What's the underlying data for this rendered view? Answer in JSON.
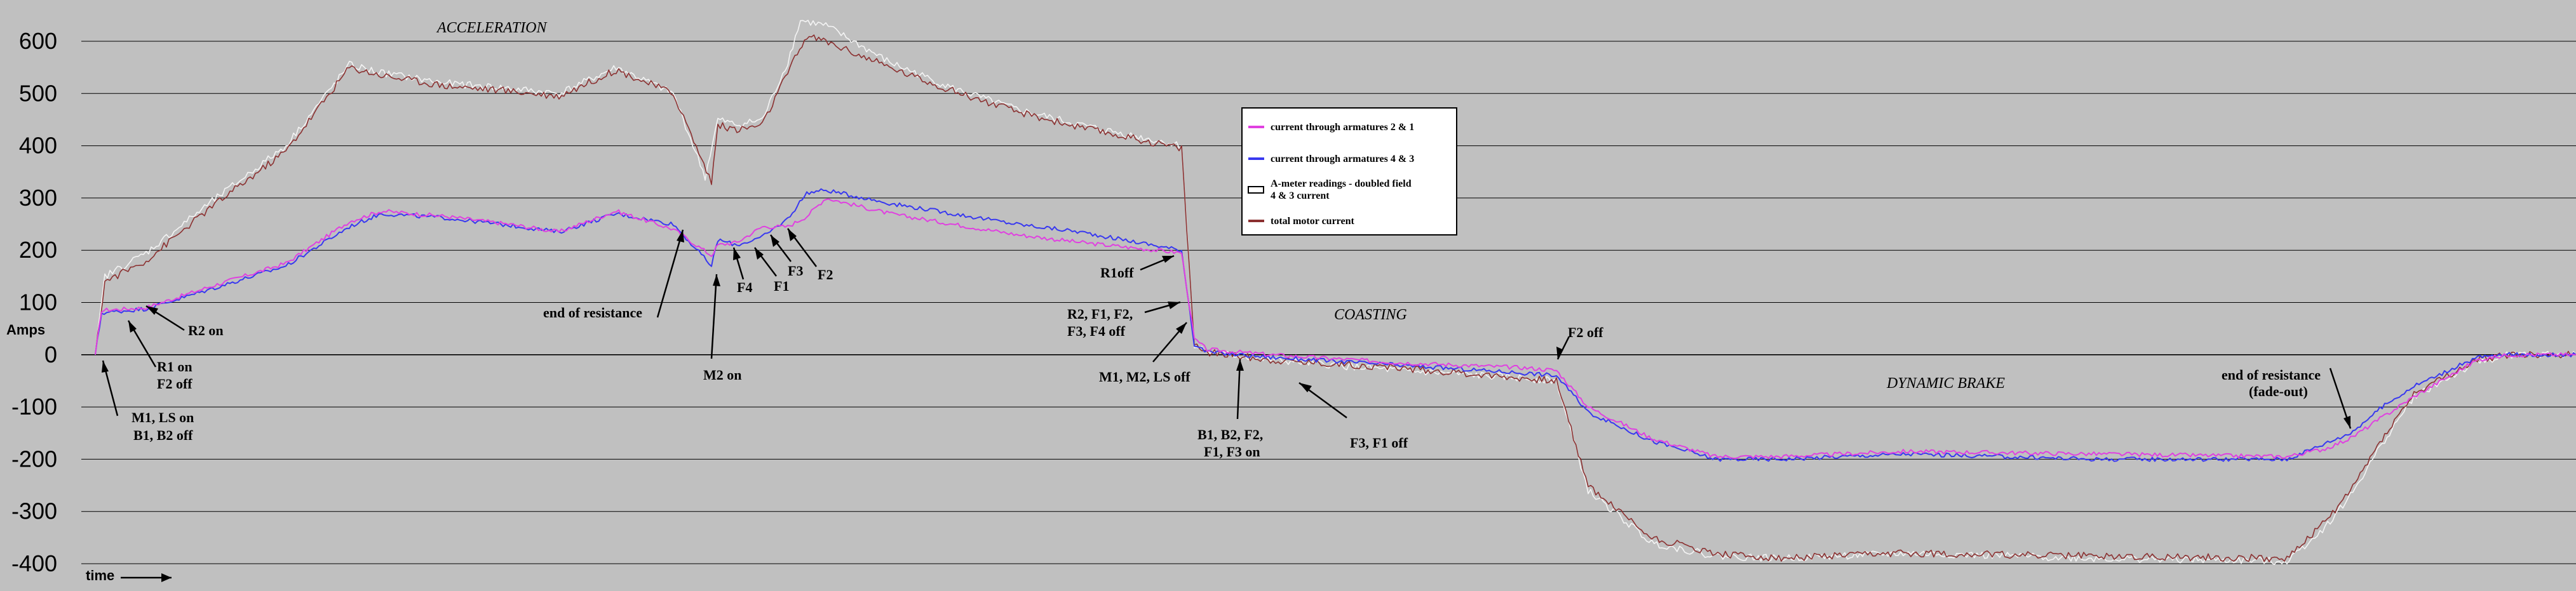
{
  "chart_data": {
    "type": "line",
    "ylabel": "Amps",
    "xlabel": "time",
    "ylim": [
      -400,
      650
    ],
    "xlim": [
      0,
      4055
    ],
    "yticks": [
      "600",
      "500",
      "400",
      "300",
      "200",
      "100",
      "0",
      "-100",
      "-200",
      "-300",
      "-400"
    ],
    "grid": true,
    "legend_position": "center",
    "section_labels": [
      "ACCELERATION",
      "COASTING",
      "DYNAMIC BRAKE"
    ],
    "annotations": [
      {
        "text": "M1, LS on",
        "line2": "B1, B2 off"
      },
      {
        "text": "R1 on",
        "line2": "F2 off"
      },
      {
        "text": "R2 on"
      },
      {
        "text": "end of resistance"
      },
      {
        "text": "M2 on"
      },
      {
        "text": "F4"
      },
      {
        "text": "F1"
      },
      {
        "text": "F3"
      },
      {
        "text": "F2"
      },
      {
        "text": "R1off"
      },
      {
        "text": "R2, F1, F2,",
        "line2": "F3, F4 off"
      },
      {
        "text": "M1, M2, LS off"
      },
      {
        "text": "B1, B2, F2,",
        "line2": "F1, F3 on"
      },
      {
        "text": "F3, F1 off"
      },
      {
        "text": "F2 off"
      },
      {
        "text": "end of resistance",
        "line2": "(fade-out)"
      }
    ],
    "series": [
      {
        "name": "current through armatures 2 & 1",
        "color": "#e040e0",
        "points": [
          [
            150,
            0
          ],
          [
            160,
            85
          ],
          [
            230,
            90
          ],
          [
            330,
            130
          ],
          [
            450,
            175
          ],
          [
            550,
            255
          ],
          [
            600,
            275
          ],
          [
            700,
            265
          ],
          [
            800,
            250
          ],
          [
            880,
            235
          ],
          [
            970,
            275
          ],
          [
            1060,
            240
          ],
          [
            1120,
            190
          ],
          [
            1130,
            210
          ],
          [
            1160,
            215
          ],
          [
            1200,
            245
          ],
          [
            1240,
            245
          ],
          [
            1270,
            265
          ],
          [
            1300,
            300
          ],
          [
            1400,
            270
          ],
          [
            1500,
            250
          ],
          [
            1600,
            230
          ],
          [
            1700,
            215
          ],
          [
            1860,
            195
          ],
          [
            1880,
            30
          ],
          [
            1900,
            10
          ],
          [
            2000,
            0
          ],
          [
            2200,
            -15
          ],
          [
            2400,
            -25
          ],
          [
            2450,
            -30
          ],
          [
            2500,
            -100
          ],
          [
            2600,
            -160
          ],
          [
            2700,
            -195
          ],
          [
            2800,
            -195
          ],
          [
            3000,
            -185
          ],
          [
            3300,
            -190
          ],
          [
            3600,
            -195
          ],
          [
            3660,
            -180
          ],
          [
            3700,
            -160
          ],
          [
            3750,
            -120
          ],
          [
            3800,
            -80
          ],
          [
            3900,
            -10
          ],
          [
            3950,
            0
          ],
          [
            4055,
            0
          ]
        ]
      },
      {
        "name": "current through armatures 4 & 3",
        "color": "#3838f0",
        "points": [
          [
            150,
            0
          ],
          [
            160,
            80
          ],
          [
            230,
            88
          ],
          [
            330,
            125
          ],
          [
            450,
            170
          ],
          [
            550,
            245
          ],
          [
            600,
            270
          ],
          [
            700,
            262
          ],
          [
            800,
            248
          ],
          [
            880,
            235
          ],
          [
            970,
            270
          ],
          [
            1060,
            250
          ],
          [
            1120,
            170
          ],
          [
            1130,
            220
          ],
          [
            1160,
            210
          ],
          [
            1200,
            225
          ],
          [
            1240,
            260
          ],
          [
            1270,
            310
          ],
          [
            1300,
            315
          ],
          [
            1400,
            290
          ],
          [
            1500,
            270
          ],
          [
            1600,
            250
          ],
          [
            1700,
            235
          ],
          [
            1860,
            200
          ],
          [
            1880,
            20
          ],
          [
            1900,
            5
          ],
          [
            2000,
            -5
          ],
          [
            2200,
            -20
          ],
          [
            2400,
            -35
          ],
          [
            2450,
            -40
          ],
          [
            2500,
            -110
          ],
          [
            2600,
            -165
          ],
          [
            2700,
            -200
          ],
          [
            2800,
            -200
          ],
          [
            3000,
            -190
          ],
          [
            3300,
            -200
          ],
          [
            3600,
            -200
          ],
          [
            3660,
            -170
          ],
          [
            3700,
            -150
          ],
          [
            3750,
            -100
          ],
          [
            3800,
            -60
          ],
          [
            3900,
            -5
          ],
          [
            3950,
            0
          ],
          [
            4055,
            0
          ]
        ]
      },
      {
        "name": "A-meter readings - doubled field 4 & 3 current",
        "color": "#f4f4f4",
        "points": [
          [
            150,
            0
          ],
          [
            165,
            150
          ],
          [
            230,
            195
          ],
          [
            330,
            290
          ],
          [
            450,
            400
          ],
          [
            550,
            555
          ],
          [
            600,
            540
          ],
          [
            700,
            520
          ],
          [
            800,
            510
          ],
          [
            880,
            500
          ],
          [
            970,
            550
          ],
          [
            1060,
            500
          ],
          [
            1110,
            340
          ],
          [
            1130,
            450
          ],
          [
            1160,
            440
          ],
          [
            1200,
            450
          ],
          [
            1240,
            560
          ],
          [
            1260,
            640
          ],
          [
            1300,
            630
          ],
          [
            1400,
            560
          ],
          [
            1500,
            510
          ],
          [
            1600,
            470
          ],
          [
            1700,
            440
          ],
          [
            1860,
            400
          ],
          [
            1880,
            20
          ],
          [
            1900,
            5
          ],
          [
            2000,
            -10
          ],
          [
            2200,
            -30
          ],
          [
            2400,
            -45
          ],
          [
            2450,
            -50
          ],
          [
            2500,
            -260
          ],
          [
            2600,
            -360
          ],
          [
            2700,
            -385
          ],
          [
            2800,
            -390
          ],
          [
            3000,
            -380
          ],
          [
            3300,
            -390
          ],
          [
            3600,
            -395
          ],
          [
            3660,
            -330
          ],
          [
            3700,
            -270
          ],
          [
            3750,
            -170
          ],
          [
            3800,
            -80
          ],
          [
            3900,
            -15
          ],
          [
            3950,
            0
          ],
          [
            4055,
            0
          ]
        ]
      },
      {
        "name": "total motor current",
        "color": "#8b3030",
        "points": [
          [
            150,
            0
          ],
          [
            165,
            140
          ],
          [
            230,
            180
          ],
          [
            330,
            280
          ],
          [
            450,
            390
          ],
          [
            550,
            550
          ],
          [
            600,
            535
          ],
          [
            700,
            515
          ],
          [
            800,
            505
          ],
          [
            880,
            495
          ],
          [
            970,
            545
          ],
          [
            1060,
            500
          ],
          [
            1120,
            330
          ],
          [
            1130,
            440
          ],
          [
            1160,
            430
          ],
          [
            1200,
            440
          ],
          [
            1240,
            540
          ],
          [
            1270,
            610
          ],
          [
            1300,
            600
          ],
          [
            1400,
            550
          ],
          [
            1500,
            505
          ],
          [
            1600,
            465
          ],
          [
            1700,
            435
          ],
          [
            1860,
            395
          ],
          [
            1880,
            20
          ],
          [
            1900,
            5
          ],
          [
            2000,
            -10
          ],
          [
            2200,
            -25
          ],
          [
            2400,
            -45
          ],
          [
            2450,
            -50
          ],
          [
            2500,
            -250
          ],
          [
            2600,
            -350
          ],
          [
            2700,
            -380
          ],
          [
            2800,
            -390
          ],
          [
            3000,
            -380
          ],
          [
            3300,
            -385
          ],
          [
            3600,
            -390
          ],
          [
            3660,
            -320
          ],
          [
            3700,
            -260
          ],
          [
            3750,
            -160
          ],
          [
            3800,
            -75
          ],
          [
            3900,
            -10
          ],
          [
            3950,
            0
          ],
          [
            4055,
            0
          ]
        ]
      }
    ]
  }
}
